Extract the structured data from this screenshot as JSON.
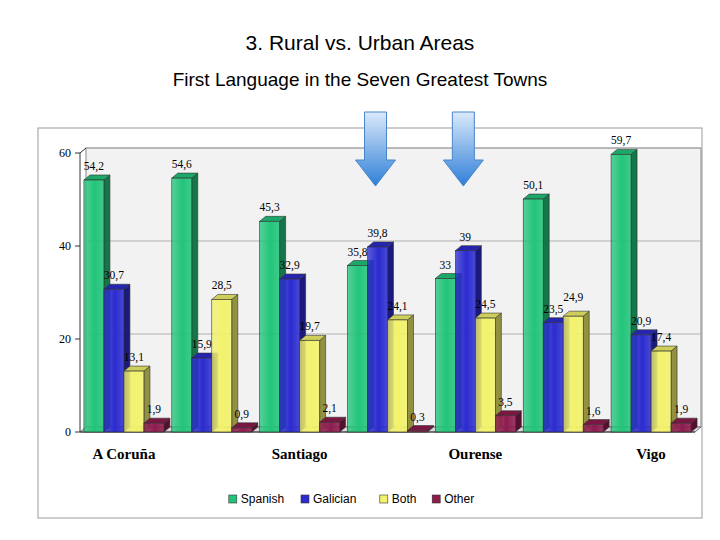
{
  "chart_data": {
    "type": "bar",
    "title": "3. Rural vs. Urban Areas",
    "subtitle": "First Language in the Seven Greatest Towns",
    "categories": [
      "A Coruña",
      null,
      "Santiago",
      null,
      "Ourense",
      null,
      "Vigo"
    ],
    "series": [
      {
        "name": "Spanish",
        "color": "#22c47a",
        "values": [
          54.2,
          54.6,
          45.3,
          35.8,
          33,
          50.1,
          59.7
        ],
        "value_labels": [
          "54,2",
          "54,6",
          "45,3",
          "35,8",
          "33",
          "50,1",
          "59,7"
        ]
      },
      {
        "name": "Galician",
        "color": "#2b2bd0",
        "values": [
          30.7,
          15.9,
          32.9,
          39.8,
          39,
          23.5,
          20.9
        ],
        "value_labels": [
          "30,7",
          "15,9",
          "32,9",
          "39,8",
          "39",
          "23,5",
          "20,9"
        ]
      },
      {
        "name": "Both",
        "color": "#f2f26b",
        "values": [
          13.1,
          28.5,
          19.7,
          24.1,
          24.5,
          24.9,
          17.4
        ],
        "value_labels": [
          "13,1",
          "28,5",
          "19,7",
          "24,1",
          "24,5",
          "24,9",
          "17,4"
        ]
      },
      {
        "name": "Other",
        "color": "#8e1b4e",
        "values": [
          1.9,
          0.9,
          2.1,
          0.3,
          3.5,
          1.6,
          1.9
        ],
        "value_labels": [
          "1,9",
          "0,9",
          "2,1",
          "0,3",
          "3,5",
          "1,6",
          "1,9"
        ]
      }
    ],
    "ylim": [
      0,
      60
    ],
    "yticks": [
      0,
      20,
      40,
      60
    ],
    "grid": true,
    "data_labels": true,
    "legend": "bottom"
  }
}
